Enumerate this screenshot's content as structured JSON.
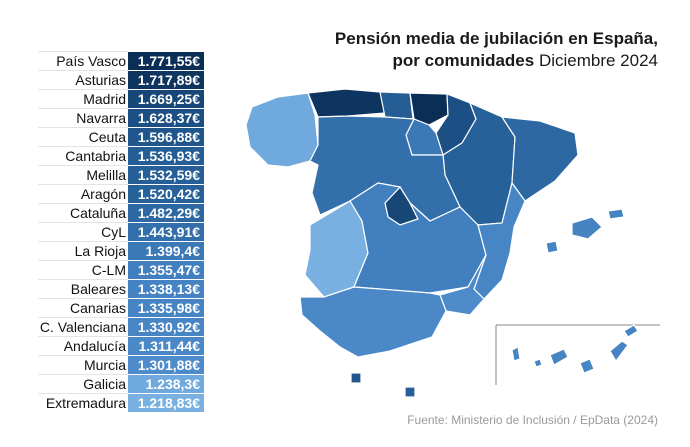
{
  "title": {
    "line1": "Pensión media de jubilación en España,",
    "line2_bold": "por comunidades",
    "line2_rest": " Diciembre 2024"
  },
  "rows": [
    {
      "name": "País Vasco",
      "value": "1.771,55€",
      "color": "#0b2e57"
    },
    {
      "name": "Asturias",
      "value": "1.717,89€",
      "color": "#0e355f"
    },
    {
      "name": "Madrid",
      "value": "1.669,25€",
      "color": "#174777"
    },
    {
      "name": "Navarra",
      "value": "1.628,37€",
      "color": "#1c4f83"
    },
    {
      "name": "Ceuta",
      "value": "1.596,88€",
      "color": "#20568b"
    },
    {
      "name": "Cantabria",
      "value": "1.536,93€",
      "color": "#245e95"
    },
    {
      "name": "Melilla",
      "value": "1.532,59€",
      "color": "#265f97"
    },
    {
      "name": "Aragón",
      "value": "1.520,42€",
      "color": "#27619a"
    },
    {
      "name": "Cataluña",
      "value": "1.482,29€",
      "color": "#2d68a3"
    },
    {
      "name": "CyL",
      "value": "1.443,91€",
      "color": "#336fab"
    },
    {
      "name": "La Rioja",
      "value": "1.399,4€",
      "color": "#3a78b6"
    },
    {
      "name": "C-LM",
      "value": "1.355,47€",
      "color": "#417fbe"
    },
    {
      "name": "Baleares",
      "value": "1.338,13€",
      "color": "#4583c3"
    },
    {
      "name": "Canarias",
      "value": "1.335,98€",
      "color": "#4684c4"
    },
    {
      "name": "C. Valenciana",
      "value": "1.330,92€",
      "color": "#4785c5"
    },
    {
      "name": "Andalucía",
      "value": "1.311,44€",
      "color": "#4a88c8"
    },
    {
      "name": "Murcia",
      "value": "1.301,88€",
      "color": "#4d8bcb"
    },
    {
      "name": "Galicia",
      "value": "1.238,3€",
      "color": "#6fa9de"
    },
    {
      "name": "Extremadura",
      "value": "1.218,83€",
      "color": "#78b0e2"
    }
  ],
  "map_colors": {
    "galicia": "#6fa9de",
    "asturias": "#0e355f",
    "cantabria": "#245e95",
    "pais_vasco": "#0b2e57",
    "navarra": "#1c4f83",
    "rioja": "#3a78b6",
    "aragon": "#27619a",
    "cataluna": "#2d68a3",
    "cyl": "#336fab",
    "madrid": "#174777",
    "clm": "#417fbe",
    "extremadura": "#78b0e2",
    "valenciana": "#4785c5",
    "murcia": "#4d8bcb",
    "andalucia": "#4a88c8",
    "baleares": "#4583c3",
    "canarias": "#4684c4",
    "ceuta": "#20568b",
    "melilla": "#265f97"
  },
  "source": "Fuente: Ministerio de Inclusión / EpData (2024)"
}
